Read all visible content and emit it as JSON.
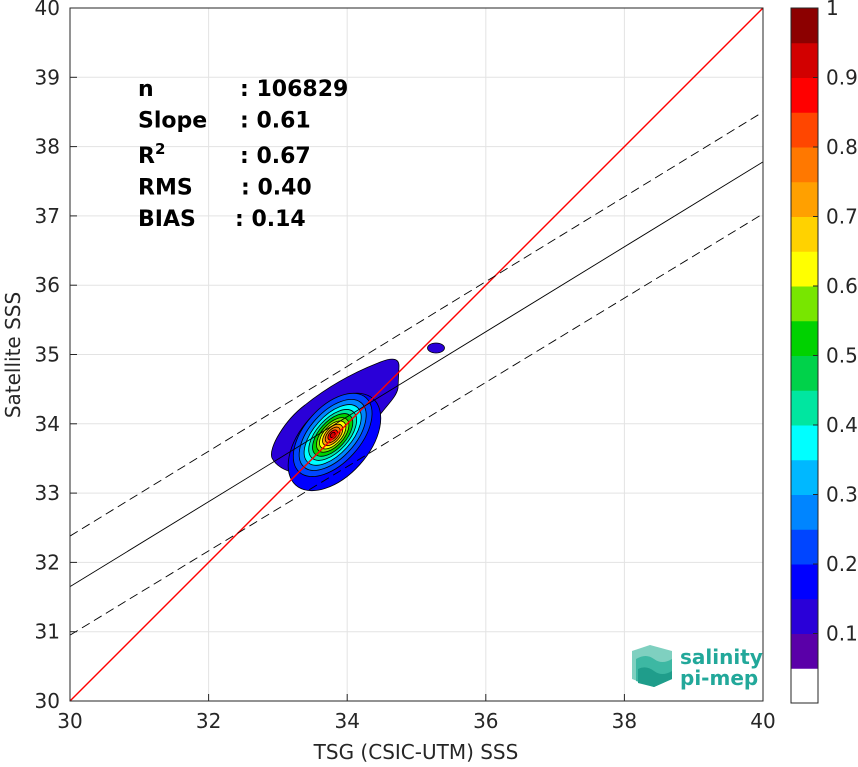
{
  "chart_data": {
    "type": "heatmap",
    "xlabel": "TSG (CSIC-UTM) SSS",
    "ylabel": "Satellite SSS",
    "xlim": [
      30,
      40
    ],
    "ylim": [
      30,
      40
    ],
    "xticks": [
      30,
      32,
      34,
      36,
      38,
      40
    ],
    "yticks": [
      30,
      31,
      32,
      33,
      34,
      35,
      36,
      37,
      38,
      39,
      40
    ],
    "grid": true,
    "stats": [
      {
        "label": "n",
        "value": ": 106829"
      },
      {
        "label": "Slope",
        "value": ": 0.61"
      },
      {
        "label": "R",
        "sup": "2",
        "value": ": 0.67"
      },
      {
        "label": "RMS",
        "value": ": 0.40"
      },
      {
        "label": "BIAS",
        "value": ": 0.14"
      }
    ],
    "lines": [
      {
        "name": "identity",
        "color": "#ff0000",
        "dash": false,
        "points": [
          [
            30,
            30
          ],
          [
            40,
            40
          ]
        ]
      },
      {
        "name": "fit",
        "color": "#000000",
        "dash": false,
        "points": [
          [
            30,
            31.65
          ],
          [
            40,
            37.78
          ]
        ]
      },
      {
        "name": "fit-upper",
        "color": "#000000",
        "dash": true,
        "points": [
          [
            30,
            32.38
          ],
          [
            40,
            38.5
          ]
        ]
      },
      {
        "name": "fit-lower",
        "color": "#000000",
        "dash": true,
        "points": [
          [
            30,
            30.95
          ],
          [
            40,
            37.03
          ]
        ]
      }
    ],
    "contour_peak": {
      "x": 33.8,
      "y": 33.85
    },
    "contour_levels": [
      0.05,
      0.1,
      0.2,
      0.3,
      0.4,
      0.5,
      0.6,
      0.7,
      0.8,
      0.9,
      1.0
    ],
    "colorbar": {
      "ticks": [
        0.1,
        0.2,
        0.3,
        0.4,
        0.5,
        0.6,
        0.7,
        0.8,
        0.9,
        1
      ],
      "tick_labels": [
        "0.1",
        "0.2",
        "0.3",
        "0.4",
        "0.5",
        "0.6",
        "0.7",
        "0.8",
        "0.9",
        "1"
      ],
      "colors": [
        "#ffffff",
        "#5a00a8",
        "#2a00d8",
        "#0000ff",
        "#0045ff",
        "#0085ff",
        "#00b8ff",
        "#00ffff",
        "#00e6a0",
        "#00d24a",
        "#00d200",
        "#78e600",
        "#ffff00",
        "#ffd200",
        "#ffa000",
        "#ff7800",
        "#ff4600",
        "#ff0000",
        "#d20000",
        "#8c0000"
      ]
    }
  },
  "logo": {
    "line1": "salinity",
    "line2": "pi-mep"
  }
}
